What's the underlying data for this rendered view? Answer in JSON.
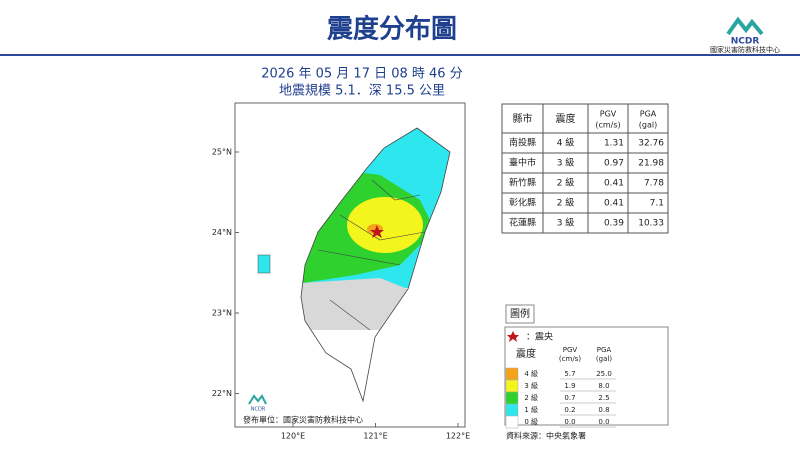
{
  "header": {
    "title": "震度分布圖",
    "logo_text": "NCDR",
    "org": "國家災害防救科技中心"
  },
  "info": {
    "time": "2026 年 05 月 17 日 08 時 46 分",
    "magnitude": "地震規模 5.1．深 15.5 公里"
  },
  "map": {
    "lat_labels": [
      "25°N",
      "24°N",
      "23°N",
      "22°N"
    ],
    "lon_labels": [
      "120°E",
      "121°E",
      "122°E"
    ],
    "logo_text": "NCDR",
    "publisher": "發布單位：國家災害防救科技中心"
  },
  "table": {
    "columns": [
      {
        "label": "縣市"
      },
      {
        "label": "震度"
      },
      {
        "label": "PGV",
        "unit": "(cm/s)"
      },
      {
        "label": "PGA",
        "unit": "(gal)"
      }
    ],
    "rows": [
      [
        "南投縣",
        "4 級",
        "1.31",
        "32.76"
      ],
      [
        "臺中市",
        "3 級",
        "0.97",
        "21.98"
      ],
      [
        "新竹縣",
        "2 級",
        "0.41",
        "7.78"
      ],
      [
        "彰化縣",
        "2 級",
        "0.41",
        "7.1"
      ],
      [
        "花蓮縣",
        "3 級",
        "0.39",
        "10.33"
      ]
    ]
  },
  "legend": {
    "title": "圖例",
    "epicenter": "：震央",
    "col_intensity": "震度",
    "col_pgv": "PGV",
    "col_pgv_unit": "(cm/s)",
    "col_pga": "PGA",
    "col_pga_unit": "(gal)",
    "rows": [
      {
        "label": "4 級",
        "pgv": "5.7",
        "pga": "25.0",
        "color": "#f5a31a"
      },
      {
        "label": "3 級",
        "pgv": "1.9",
        "pga": "8.0",
        "color": "#f5f51e"
      },
      {
        "label": "2 級",
        "pgv": "0.7",
        "pga": "2.5",
        "color": "#2fd12f"
      },
      {
        "label": "1 級",
        "pgv": "0.2",
        "pga": "0.8",
        "color": "#2ee6ee"
      },
      {
        "label": "0 級",
        "pgv": "0.0",
        "pga": "0.0",
        "color": "#ffffff"
      }
    ],
    "source": "資料來源：中央氣象署"
  }
}
